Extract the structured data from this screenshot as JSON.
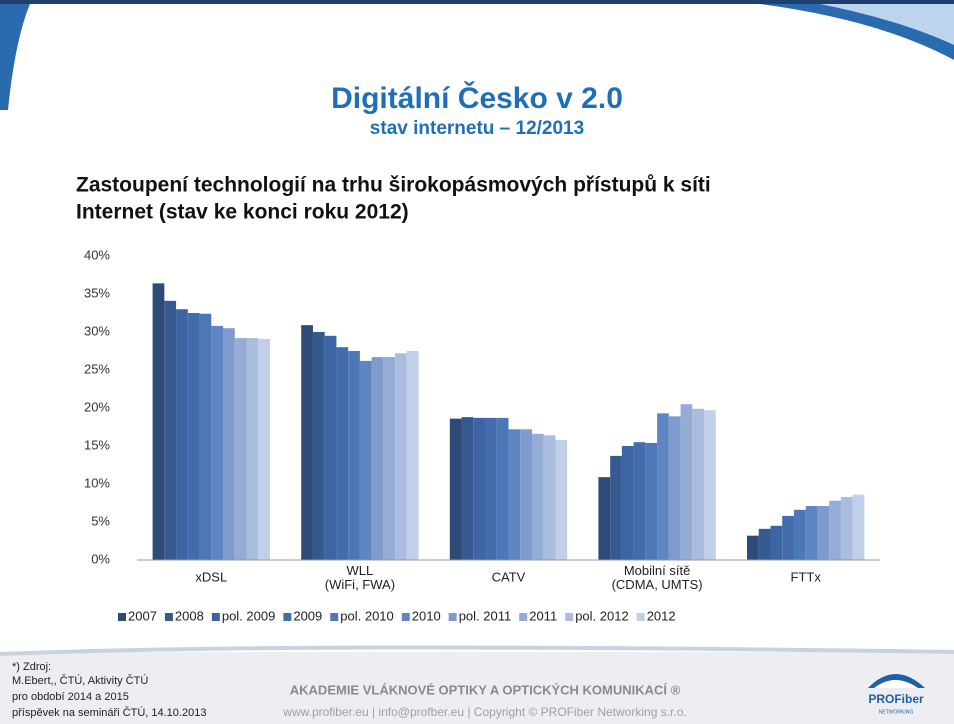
{
  "header": {
    "title": "Digitální Česko v 2.0",
    "subtitle": "stav internetu – 12/2013"
  },
  "chart_data": {
    "type": "bar",
    "title_lines": [
      "Zastoupení technologií na trhu širokopásmových přístupů k síti",
      "Internet (stav ke konci roku 2012)"
    ],
    "categories": [
      "xDSL",
      "WLL (WiFi, FWA)",
      "CATV",
      "Mobilní sítě (CDMA, UMTS)",
      "FTTx"
    ],
    "series": [
      {
        "name": "2007",
        "color": "#2e4b78",
        "values": [
          36.4,
          30.9,
          18.6,
          10.9,
          3.2
        ]
      },
      {
        "name": "2008",
        "color": "#365a8f",
        "values": [
          34.1,
          30.0,
          18.8,
          13.7,
          4.1
        ]
      },
      {
        "name": "pol. 2009",
        "color": "#3d64a3",
        "values": [
          33.0,
          29.5,
          18.7,
          15.0,
          4.5
        ]
      },
      {
        "name": "2009",
        "color": "#446cad",
        "values": [
          32.5,
          28.0,
          18.7,
          15.5,
          5.8
        ]
      },
      {
        "name": "pol. 2010",
        "color": "#4d78b8",
        "values": [
          32.4,
          27.5,
          18.7,
          15.4,
          6.6
        ]
      },
      {
        "name": "2010",
        "color": "#5f86c3",
        "values": [
          30.8,
          26.2,
          17.2,
          19.3,
          7.1
        ]
      },
      {
        "name": "pol. 2011",
        "color": "#7f9bcd",
        "values": [
          30.5,
          26.7,
          17.2,
          18.9,
          7.1
        ]
      },
      {
        "name": "2011",
        "color": "#95acd6",
        "values": [
          29.2,
          26.7,
          16.6,
          20.5,
          7.8
        ]
      },
      {
        "name": "pol. 2012",
        "color": "#aabde0",
        "values": [
          29.2,
          27.2,
          16.4,
          19.9,
          8.3
        ]
      },
      {
        "name": "2012",
        "color": "#c2cfe9",
        "values": [
          29.1,
          27.5,
          15.8,
          19.7,
          8.6
        ]
      }
    ],
    "ylim": [
      0,
      40
    ],
    "yticks": [
      {
        "value": 0,
        "label": "0%"
      },
      {
        "value": 5,
        "label": "5%"
      },
      {
        "value": 10,
        "label": "10%"
      },
      {
        "value": 15,
        "label": "15%"
      },
      {
        "value": 20,
        "label": "20%"
      },
      {
        "value": 25,
        "label": "25%"
      },
      {
        "value": 30,
        "label": "30%"
      },
      {
        "value": 35,
        "label": "35%"
      },
      {
        "value": 40,
        "label": "40%"
      }
    ],
    "legend": "bottom",
    "grid": false
  },
  "footer": {
    "source_lines": [
      "*) Zdroj:",
      "M.Ebert,, ČTÚ, Aktivity ČTÚ",
      "pro období 2014 a 2015",
      "příspěvek na semináři ČTÚ, 14.10.2013"
    ],
    "academy": "AKADEMIE VLÁKNOVÉ OPTIKY  A OPTICKÝCH KOMUNIKACÍ ®",
    "contact": "www.profiber.eu  |  info@profber.eu  |  Copyright © PROFiber Networking s.r.o.",
    "logo": "PROFiber",
    "logo_sub": "NETWORKING"
  }
}
